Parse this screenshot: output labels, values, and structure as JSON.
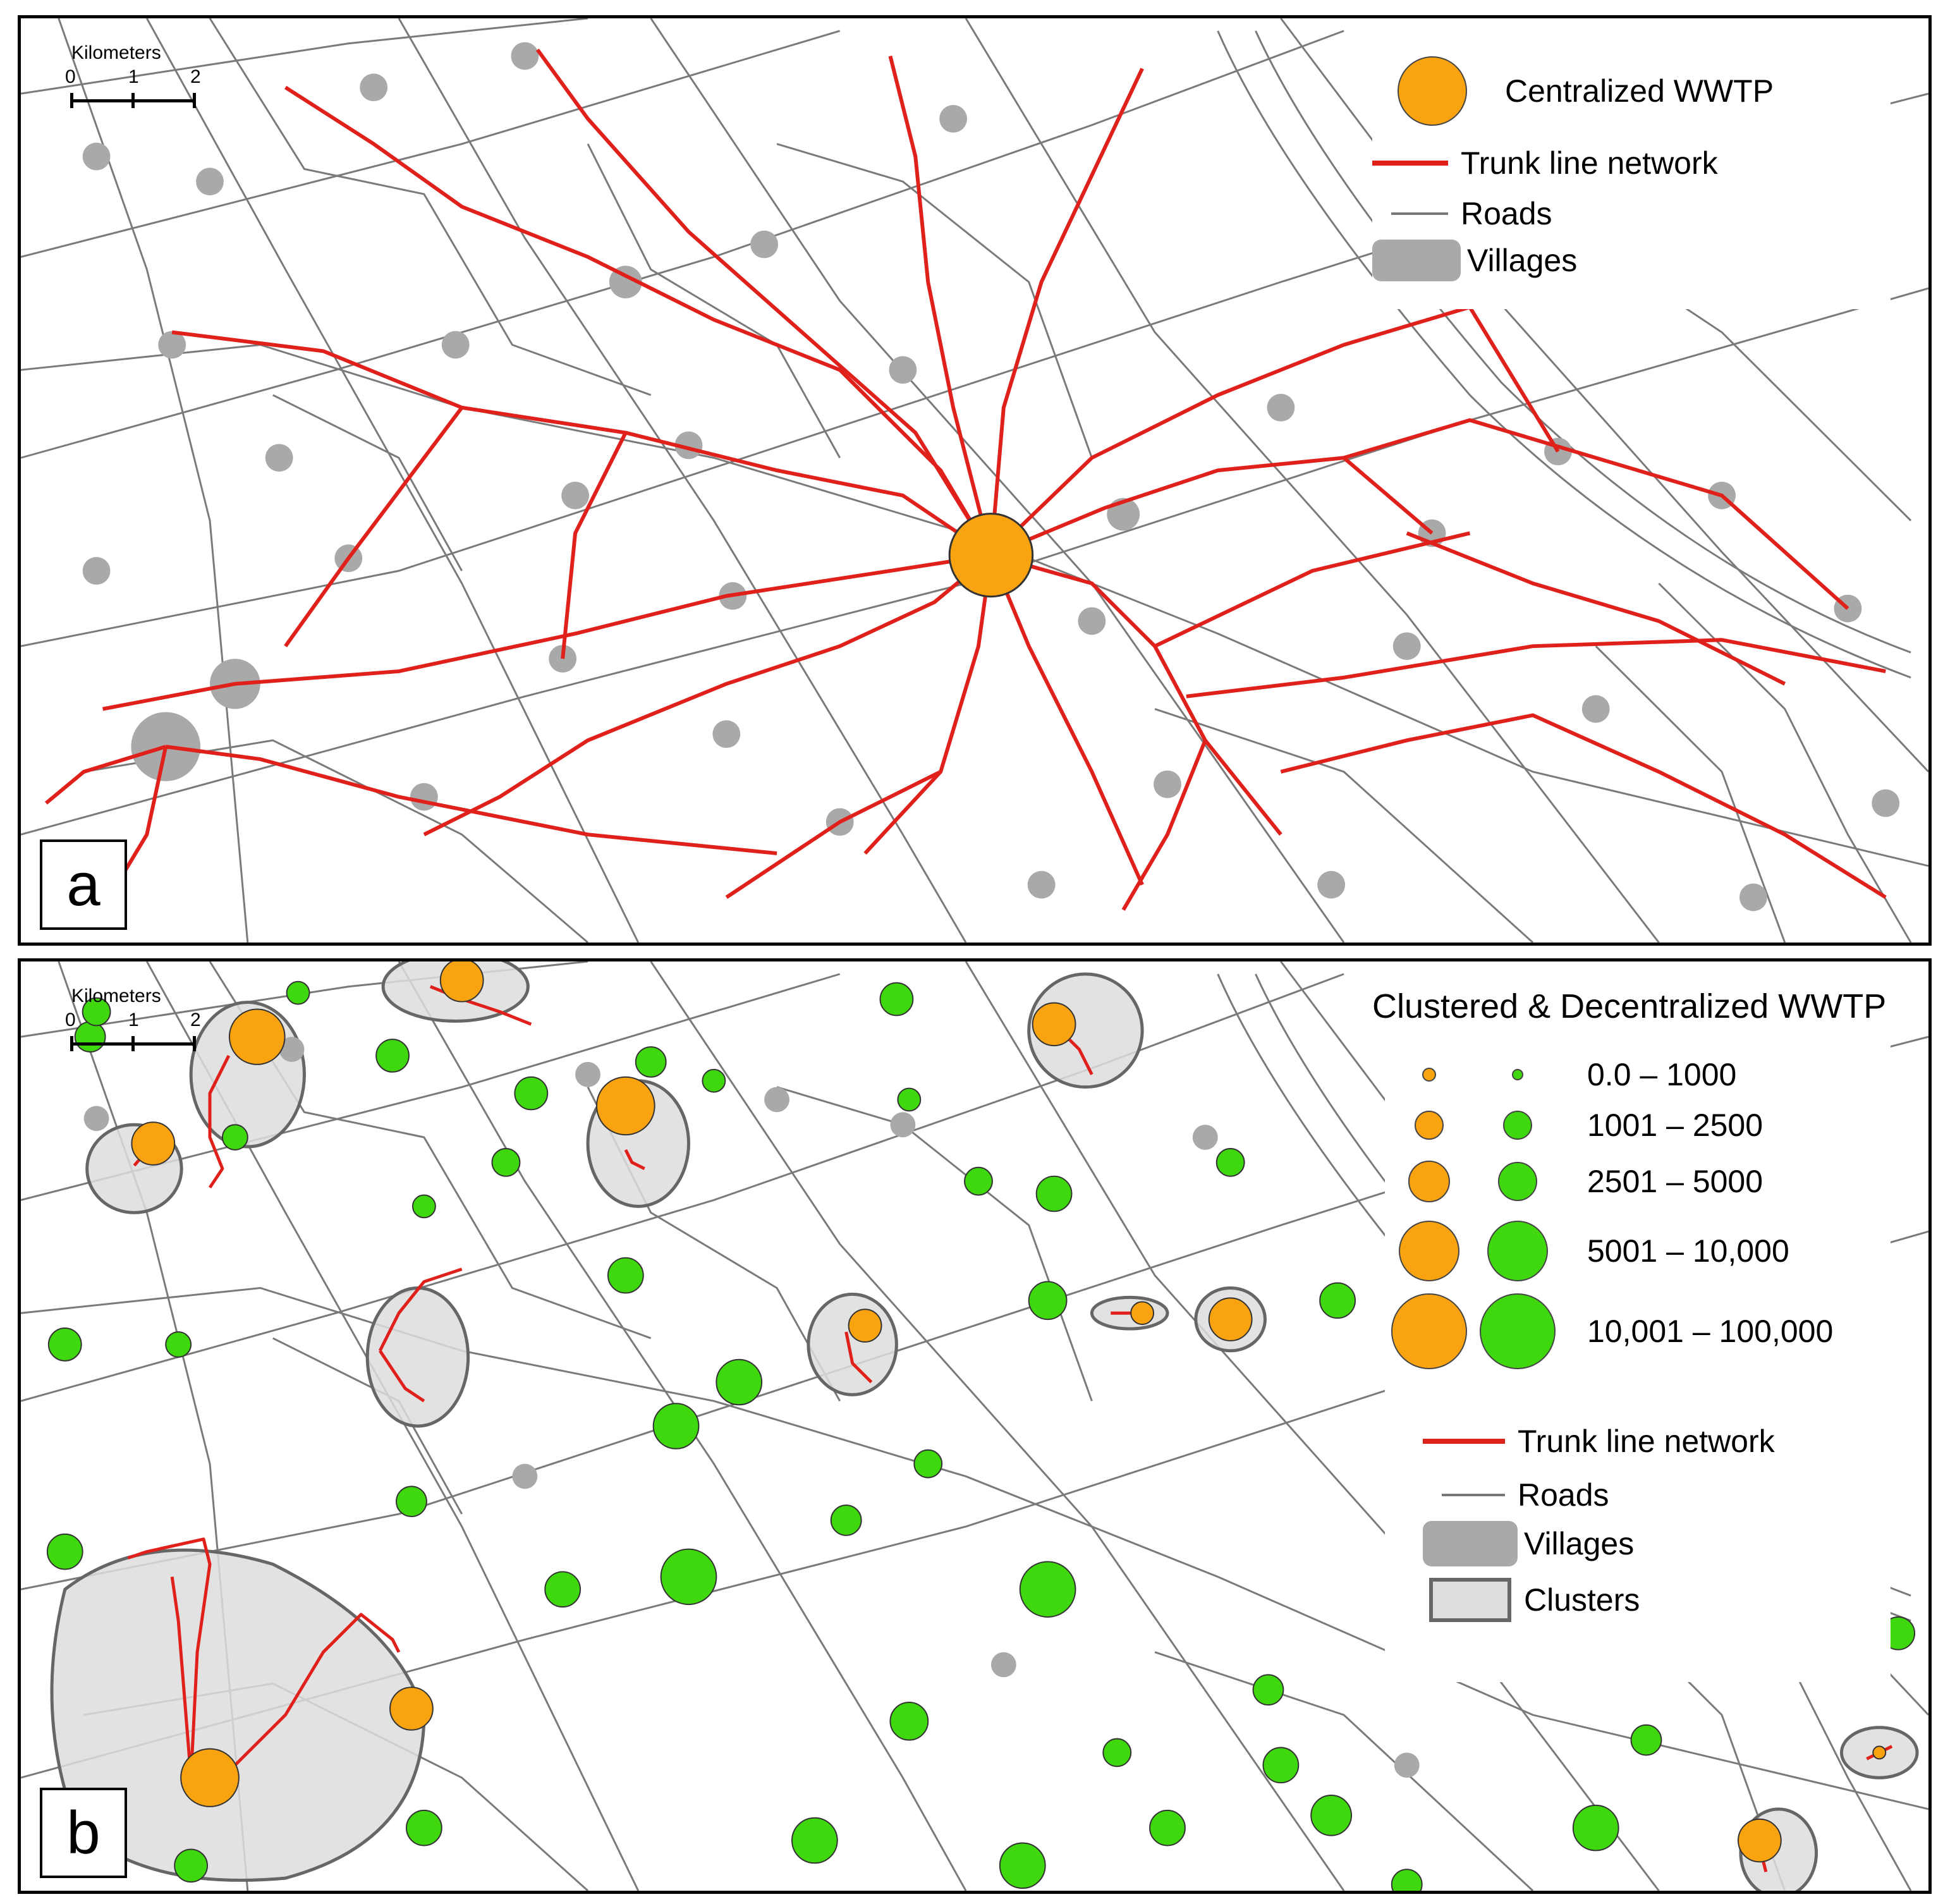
{
  "colors": {
    "trunk": "#e0201b",
    "road": "#7a7a7a",
    "village": "#a9a9a9",
    "cluster_fill": "#dddddd",
    "cluster_edge": "#666666",
    "wwtp_orange": "#f9a311",
    "wwtp_green": "#3fd70e"
  },
  "scalebar": {
    "title": "Kilometers",
    "ticks": [
      "0",
      "1",
      "2"
    ]
  },
  "panel_a": {
    "label": "a",
    "legend": {
      "central_wwtp": "Centralized WWTP",
      "trunk": "Trunk line network",
      "roads": "Roads",
      "villages": "Villages"
    }
  },
  "panel_b": {
    "label": "b",
    "legend": {
      "title": "Clustered & Decentralized WWTP",
      "classes": [
        "0.0 – 1000",
        "1001 – 2500",
        "2501 – 5000",
        "5001 – 10,000",
        "10,001 – 100,000"
      ],
      "trunk": "Trunk line network",
      "roads": "Roads",
      "villages": "Villages",
      "clusters": "Clusters"
    }
  }
}
